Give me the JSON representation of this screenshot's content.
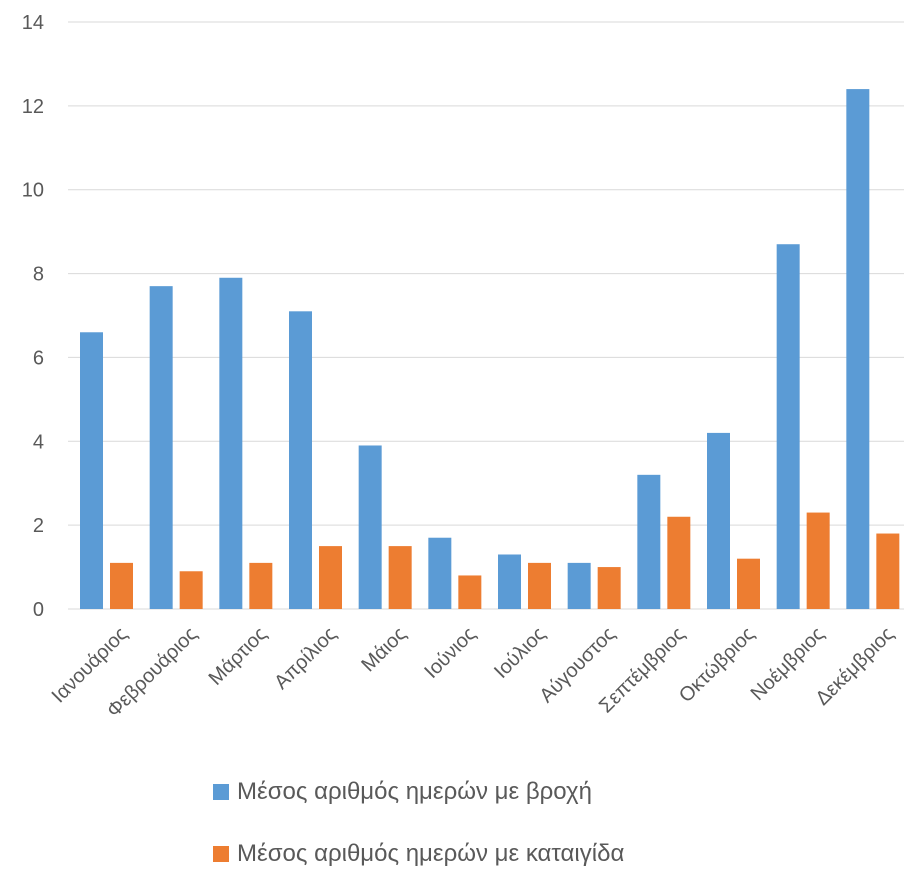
{
  "chart_data": {
    "type": "bar",
    "categories": [
      "Ιανουάριος",
      "Φεβρουάριος",
      "Μάρτιος",
      "Απρίλιος",
      "Μάιος",
      "Ιούνιος",
      "Ιούλιος",
      "Αύγουστος",
      "Σεπτέμβριος",
      "Οκτώβριος",
      "Νοέμβριος",
      "Δεκέμβριος"
    ],
    "series": [
      {
        "name": "Μέσος αριθμός ημερών με βροχή",
        "color": "#5b9bd5",
        "values": [
          6.6,
          7.7,
          7.9,
          7.1,
          3.9,
          1.7,
          1.3,
          1.1,
          3.2,
          4.2,
          8.7,
          12.4
        ]
      },
      {
        "name": "Μέσος αριθμός ημερών με καταιγίδα",
        "color": "#ed7d31",
        "values": [
          1.1,
          0.9,
          1.1,
          1.5,
          1.5,
          0.8,
          1.1,
          1.0,
          2.2,
          1.2,
          2.3,
          1.8
        ]
      }
    ],
    "ylim": [
      0,
      14
    ],
    "yticks": [
      "0",
      "2",
      "4",
      "6",
      "8",
      "10",
      "12",
      "14"
    ],
    "grid": true,
    "legend_position": "bottom",
    "title": "",
    "xlabel": "",
    "ylabel": ""
  }
}
